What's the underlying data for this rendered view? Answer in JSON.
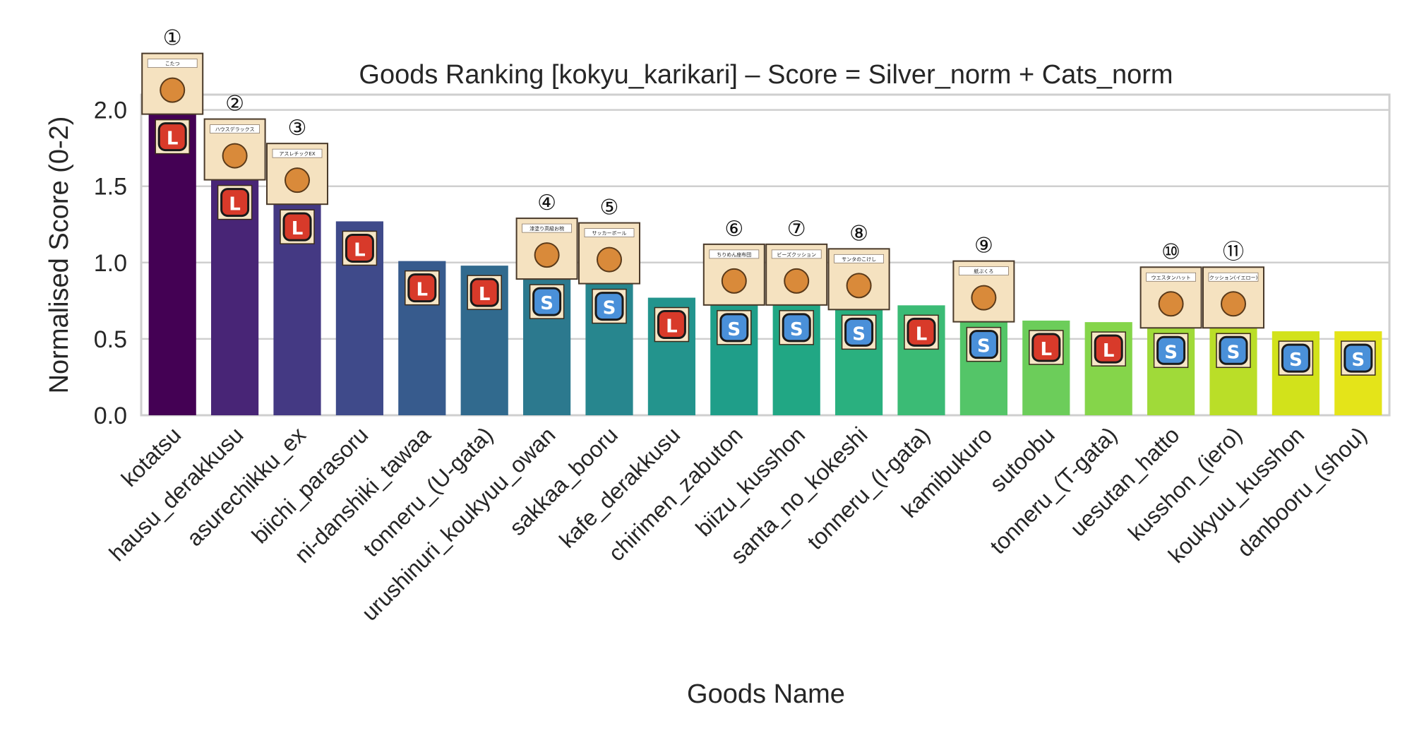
{
  "chart_data": {
    "type": "bar",
    "title": "Goods Ranking [kokyu_karikari]  –  Score = Silver_norm + Cats_norm",
    "xlabel": "Goods Name",
    "ylabel": "Normalised Score (0-2)",
    "ylim": [
      0,
      2.1
    ],
    "yticks": [
      0.0,
      0.5,
      1.0,
      1.5,
      2.0
    ],
    "ytick_labels": [
      "0.0",
      "0.5",
      "1.0",
      "1.5",
      "2.0"
    ],
    "grid": "horizontal",
    "categories": [
      "kotatsu",
      "hausu_derakkusu",
      "asurechikku_ex",
      "biichi_parasoru",
      "ni-danshiki_tawaa",
      "tonneru_(U-gata)",
      "urushinuri_koukyuu_owan",
      "sakkaa_booru",
      "kafe_derakkusu",
      "chirimen_zabuton",
      "biizu_kusshon",
      "santa_no_kokeshi",
      "tonneru_(I-gata)",
      "kamibukuro",
      "sutoobu",
      "tonneru_(T-gata)",
      "uesutan_hatto",
      "kusshon_(iero)",
      "koukyuu_kusshon",
      "danbooru_(shou)"
    ],
    "values": [
      2.0,
      1.57,
      1.41,
      1.27,
      1.01,
      0.98,
      0.92,
      0.89,
      0.77,
      0.75,
      0.75,
      0.72,
      0.72,
      0.64,
      0.62,
      0.61,
      0.6,
      0.6,
      0.55,
      0.55
    ],
    "size_badges": [
      "L",
      "L",
      "L",
      "L",
      "L",
      "L",
      "S",
      "S",
      "L",
      "S",
      "S",
      "S",
      "L",
      "S",
      "L",
      "L",
      "S",
      "S",
      "S",
      "S"
    ],
    "rank_labels": [
      "①",
      "②",
      "③",
      "",
      "",
      "",
      "④",
      "⑤",
      "",
      "⑥",
      "⑦",
      "⑧",
      "",
      "⑨",
      "",
      "",
      "⑩",
      "⑪",
      "",
      ""
    ],
    "card_labels": [
      "こたつ",
      "ハウスデラックス",
      "アスレチックEX",
      "",
      "",
      "",
      "漆塗り高級お椀",
      "サッカーボール",
      "",
      "ちりめん座布団",
      "ビーズクッション",
      "サンタのこけし",
      "",
      "紙ぶくろ",
      "",
      "",
      "ウエスタンハット",
      "クッション(イエロー)",
      "",
      ""
    ],
    "colors": [
      "#440154",
      "#482576",
      "#443983",
      "#3f4a8a",
      "#375b8d",
      "#316a8e",
      "#2c798e",
      "#27868e",
      "#23948d",
      "#1f9e89",
      "#21a784",
      "#2ab07f",
      "#3bbb75",
      "#54c568",
      "#6ccd5a",
      "#85d54a",
      "#a0da39",
      "#bade28",
      "#d2e21b",
      "#e4e419"
    ],
    "badge_colors": {
      "L": "#d83a2a",
      "S": "#4a90d9"
    }
  }
}
